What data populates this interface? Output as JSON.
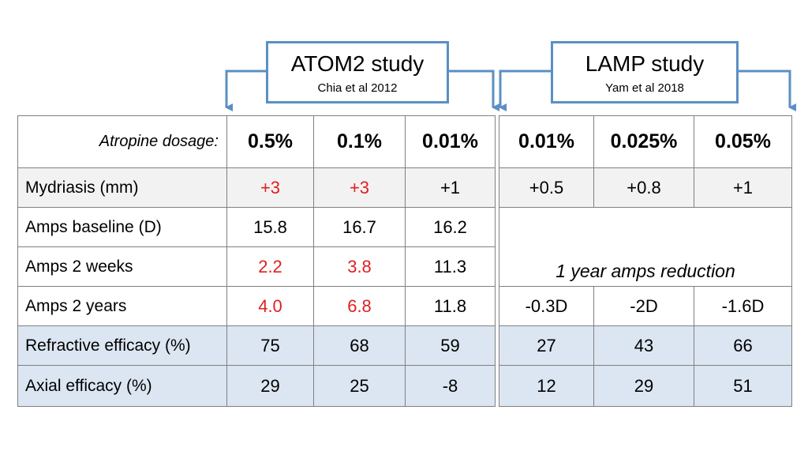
{
  "studies": [
    {
      "title": "ATOM2 study",
      "citation": "Chia et al 2012"
    },
    {
      "title": "LAMP study",
      "citation": "Yam et al 2018"
    }
  ],
  "table": {
    "header": [
      "Atropine dosage:",
      "0.5%",
      "0.1%",
      "0.01%",
      "0.01%",
      "0.025%",
      "0.05%"
    ],
    "rows": [
      [
        "Mydriasis (mm)",
        "+3",
        "+3",
        "+1",
        "+0.5",
        "+0.8",
        "+1"
      ],
      [
        "Amps baseline (D)",
        "15.8",
        "16.7",
        "16.2"
      ],
      [
        "Amps 2 weeks",
        "2.2",
        "3.8",
        "11.3"
      ],
      [
        "Amps 2 years",
        "4.0",
        "6.8",
        "11.8",
        "-0.3D",
        "-2D",
        "-1.6D"
      ],
      [
        "Refractive efficacy (%)",
        "75",
        "68",
        "59",
        "27",
        "43",
        "66"
      ],
      [
        "Axial efficacy (%)",
        "29",
        "25",
        "-8",
        "12",
        "29",
        "51"
      ]
    ],
    "merged_note": "1 year amps reduction"
  }
}
